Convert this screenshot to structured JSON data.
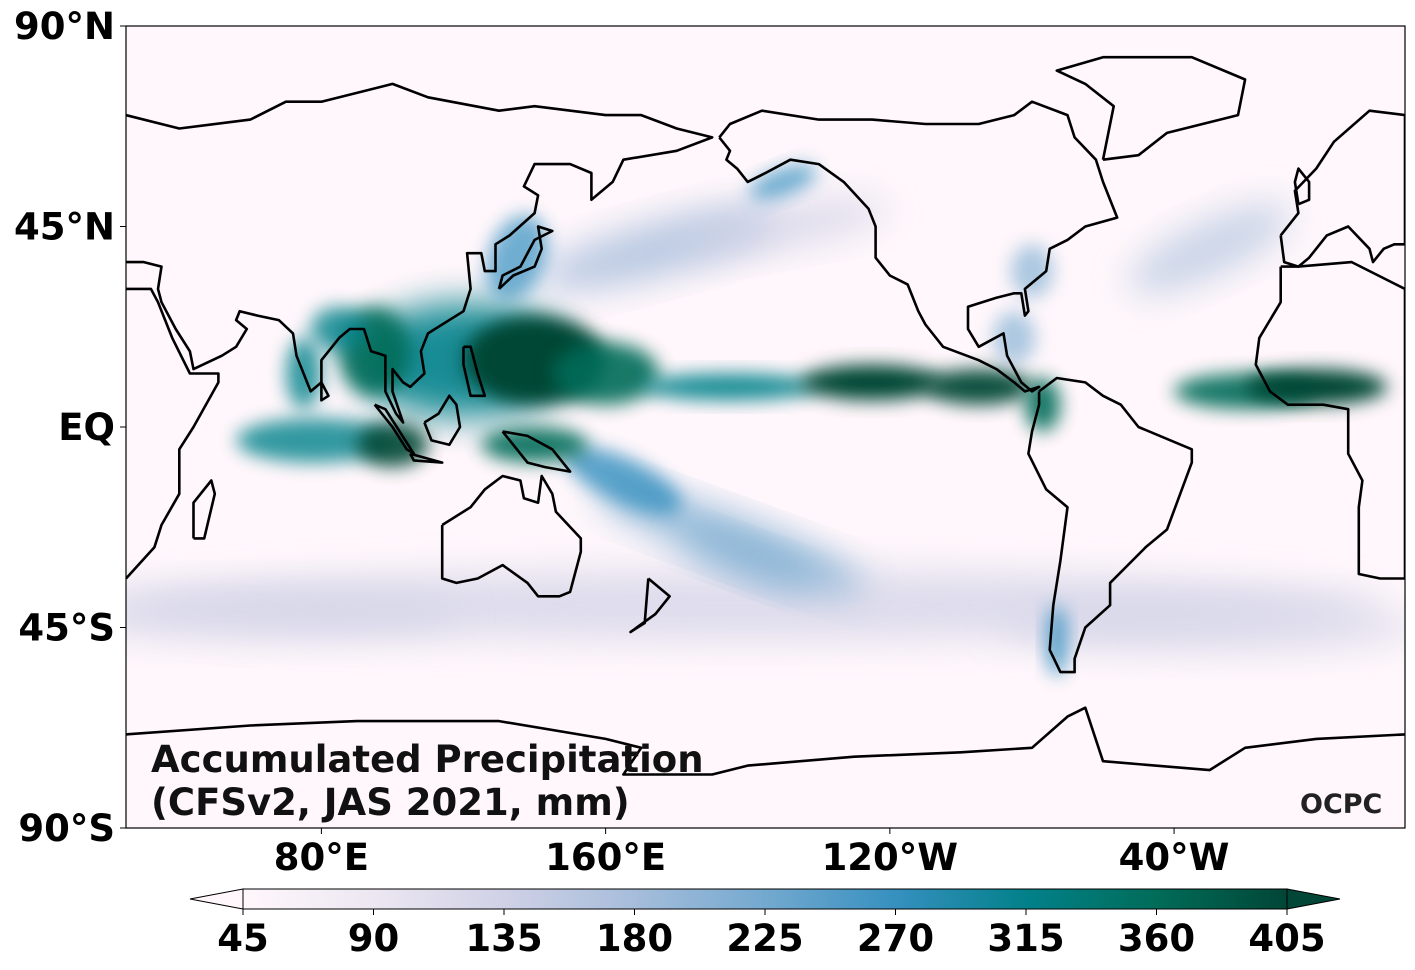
{
  "map": {
    "title_line1": "Accumulated Precipitation",
    "title_line2": "(CFSv2, JAS 2021, mm)",
    "logo": "OCPC",
    "projection": "equirectangular, centered ~205°E",
    "background_color": "#fff7fb",
    "coastline_color": "#000000",
    "lat_ticks": [
      {
        "value": 90,
        "label": "90°N"
      },
      {
        "value": 45,
        "label": "45°N"
      },
      {
        "value": 0,
        "label": "EQ"
      },
      {
        "value": -45,
        "label": "45°S"
      },
      {
        "value": -90,
        "label": "90°S"
      }
    ],
    "lon_ticks": [
      {
        "value": 80,
        "label": "80°E"
      },
      {
        "value": 160,
        "label": "160°E"
      },
      {
        "value": 240,
        "label": "120°W"
      },
      {
        "value": 320,
        "label": "40°W"
      }
    ]
  },
  "colorbar": {
    "colormap": "PuBuGn",
    "colors": [
      "#fff7fb",
      "#ece7f2",
      "#d0d1e6",
      "#a6bddb",
      "#74a9cf",
      "#3690c0",
      "#02818a",
      "#016c59",
      "#014636"
    ],
    "extend": "both",
    "ticks": [
      "45",
      "90",
      "135",
      "180",
      "225",
      "270",
      "315",
      "360",
      "405"
    ]
  }
}
